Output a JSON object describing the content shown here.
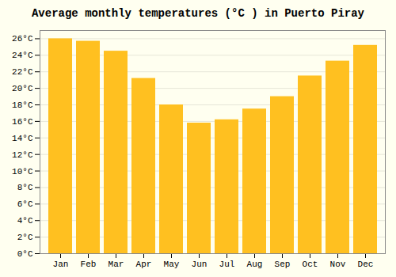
{
  "chart_data": {
    "type": "bar",
    "title": "Average monthly temperatures (°C ) in Puerto Piray",
    "categories": [
      "Jan",
      "Feb",
      "Mar",
      "Apr",
      "May",
      "Jun",
      "Jul",
      "Aug",
      "Sep",
      "Oct",
      "Nov",
      "Dec"
    ],
    "values": [
      26.0,
      25.7,
      24.5,
      21.2,
      18.0,
      15.8,
      16.2,
      17.5,
      19.0,
      21.5,
      23.3,
      25.2
    ],
    "color": "#FFC020",
    "ylim": [
      0,
      27
    ],
    "yticks": [
      {
        "value": 0,
        "label": "0°C"
      },
      {
        "value": 2,
        "label": "2°C"
      },
      {
        "value": 4,
        "label": "4°C"
      },
      {
        "value": 6,
        "label": "6°C"
      },
      {
        "value": 8,
        "label": "8°C"
      },
      {
        "value": 10,
        "label": "10°C"
      },
      {
        "value": 12,
        "label": "12°C"
      },
      {
        "value": 14,
        "label": "14°C"
      },
      {
        "value": 16,
        "label": "16°C"
      },
      {
        "value": 18,
        "label": "18°C"
      },
      {
        "value": 20,
        "label": "20°C"
      },
      {
        "value": 22,
        "label": "22°C"
      },
      {
        "value": 24,
        "label": "24°C"
      },
      {
        "value": 26,
        "label": "26°C"
      }
    ],
    "grid": true
  }
}
